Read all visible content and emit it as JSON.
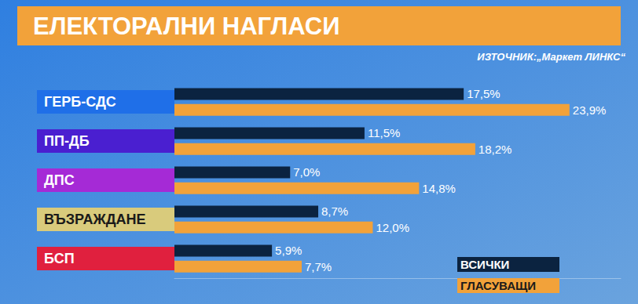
{
  "chart_data": {
    "type": "bar",
    "orientation": "horizontal",
    "title": "ЕЛЕКТОРАЛНИ НАГЛАСИ",
    "subtitle": "ИЗТОЧНИК:„Маркет ЛИНКС“",
    "categories": [
      "ГЕРБ-СДС",
      "ПП-ДБ",
      "ДПС",
      "ВЪЗРАЖДАНЕ",
      "БСП"
    ],
    "series": [
      {
        "name": "ВСИЧКИ",
        "color": "#0b2340",
        "values": [
          17.5,
          11.5,
          7.0,
          8.7,
          5.9
        ],
        "value_labels": [
          "17,5%",
          "11,5%",
          "7,0%",
          "8,7%",
          "5,9%"
        ]
      },
      {
        "name": "ГЛАСУВАЩИ",
        "color": "#f2a23a",
        "values": [
          23.9,
          18.2,
          14.8,
          12.0,
          7.7
        ],
        "value_labels": [
          "23,9%",
          "18,2%",
          "14,8%",
          "12,0%",
          "7,7%"
        ]
      }
    ],
    "xlim": [
      0,
      27
    ],
    "tick_labels": "y",
    "data_labels": true,
    "legend": "bottom right",
    "grid": false
  }
}
